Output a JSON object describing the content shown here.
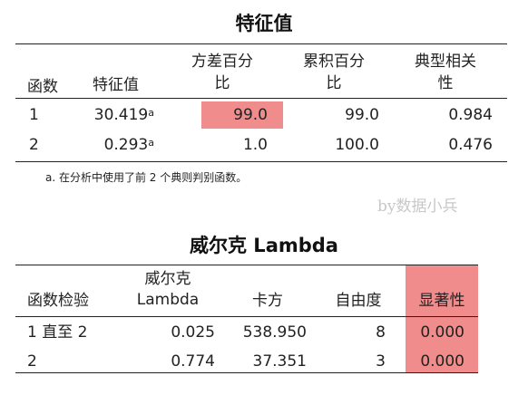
{
  "table1": {
    "title": "特征值",
    "headers": {
      "function": "函数",
      "eigenvalue": "特征值",
      "variance_line1": "方差百分",
      "variance_line2": "比",
      "cumulative_line1": "累积百分",
      "cumulative_line2": "比",
      "canon_line1": "典型相关",
      "canon_line2": "性"
    },
    "rows": [
      {
        "function": "1",
        "eigenvalue": "30.419",
        "sup": "a",
        "variance": "99.0",
        "cumulative": "99.0",
        "canon": "0.984"
      },
      {
        "function": "2",
        "eigenvalue": "0.293",
        "sup": "a",
        "variance": "1.0",
        "cumulative": "100.0",
        "canon": "0.476"
      }
    ],
    "footnote": "a. 在分析中使用了前 2 个典则判别函数。",
    "highlight_color": "#f08c8c"
  },
  "watermark": "by数据小兵",
  "table2": {
    "title": "威尔克 Lambda",
    "headers": {
      "test": "函数检验",
      "lambda_line1": "威尔克",
      "lambda_line2": "Lambda",
      "chisq": "卡方",
      "df": "自由度",
      "sig": "显著性"
    },
    "rows": [
      {
        "test": "1 直至 2",
        "lambda": "0.025",
        "chisq": "538.950",
        "df": "8",
        "sig": "0.000"
      },
      {
        "test": "2",
        "lambda": "0.774",
        "chisq": "37.351",
        "df": "3",
        "sig": "0.000"
      }
    ],
    "highlight_color": "#f08c8c"
  }
}
